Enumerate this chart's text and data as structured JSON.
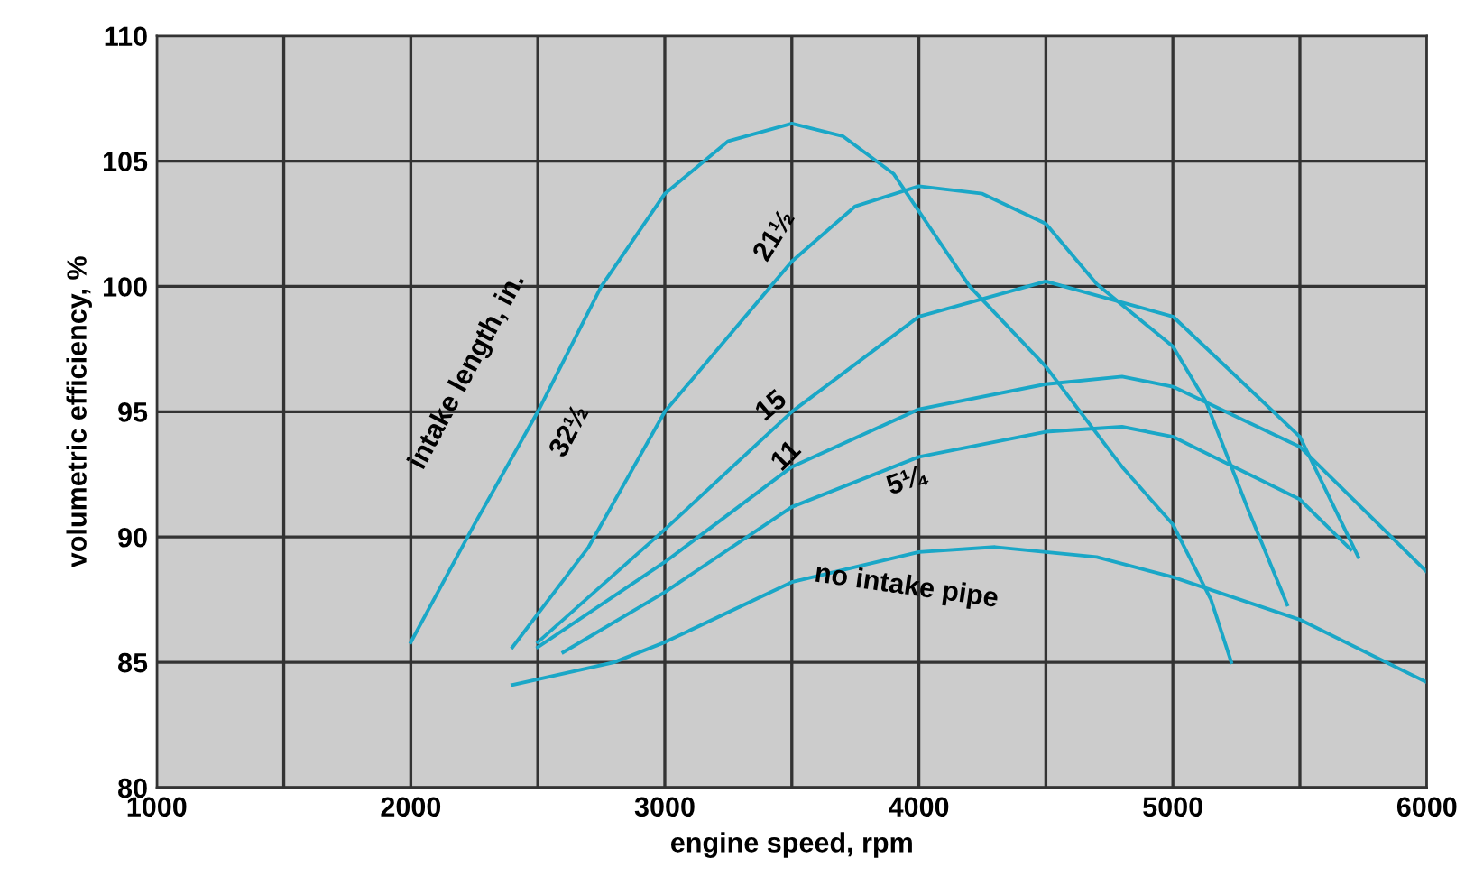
{
  "chart_data": {
    "type": "line",
    "xlabel": "engine speed, rpm",
    "ylabel": "volumetric efficiency, %",
    "legend_title": "intake length, in.",
    "xlim": [
      1000,
      6000
    ],
    "ylim": [
      80,
      110
    ],
    "xticks": [
      1000,
      {
        "value": 1500,
        "label": null
      },
      2000,
      {
        "value": 2500,
        "label": null
      },
      3000,
      {
        "value": 3500,
        "label": null
      },
      4000,
      {
        "value": 4500,
        "label": null
      },
      5000,
      {
        "value": 5500,
        "label": null
      },
      6000
    ],
    "yticks": [
      80,
      85,
      90,
      95,
      100,
      105,
      110
    ],
    "grid": true,
    "legend": false,
    "marker": "none",
    "line_style": "solid",
    "series": [
      {
        "name": "32½",
        "color": "#1aa7c7",
        "x": [
          2000,
          2250,
          2500,
          2750,
          3000,
          3250,
          3500,
          3700,
          3900,
          4200,
          4500,
          4800,
          5000,
          5150,
          5230
        ],
        "values": [
          85.8,
          90.5,
          95,
          100,
          103.7,
          105.8,
          106.5,
          106,
          104.5,
          100,
          96.8,
          92.8,
          90.5,
          87.5,
          85
        ]
      },
      {
        "name": "21½",
        "color": "#1aa7c7",
        "x": [
          2400,
          2700,
          3000,
          3250,
          3500,
          3750,
          4000,
          4250,
          4500,
          4700,
          5000,
          5130,
          5300,
          5450
        ],
        "values": [
          85.6,
          89.6,
          95,
          98,
          101,
          103.2,
          104,
          103.7,
          102.5,
          100.1,
          97.6,
          95.4,
          91,
          87.3
        ]
      },
      {
        "name": "15",
        "color": "#1aa7c7",
        "x": [
          2500,
          3000,
          3500,
          4000,
          4500,
          5000,
          5500,
          5730
        ],
        "values": [
          85.8,
          90.3,
          95,
          98.8,
          100.2,
          98.8,
          94,
          89.2
        ]
      },
      {
        "name": "11",
        "color": "#1aa7c7",
        "x": [
          2500,
          3000,
          3500,
          4000,
          4500,
          4800,
          5000,
          5500,
          6000
        ],
        "values": [
          85.6,
          89,
          92.8,
          95.1,
          96.1,
          96.4,
          96,
          93.6,
          88.6
        ]
      },
      {
        "name": "5¼",
        "color": "#1aa7c7",
        "x": [
          2600,
          3000,
          3500,
          4000,
          4500,
          4800,
          5000,
          5500,
          5700
        ],
        "values": [
          85.4,
          87.8,
          91.2,
          93.2,
          94.2,
          94.4,
          94,
          91.5,
          89.5
        ]
      },
      {
        "name": "no intake pipe",
        "color": "#1aa7c7",
        "x": [
          2400,
          2800,
          3000,
          3500,
          4000,
          4300,
          4700,
          5000,
          5500,
          6000
        ],
        "values": [
          84.1,
          85,
          85.8,
          88.2,
          89.4,
          89.6,
          89.2,
          88.4,
          86.7,
          84.2
        ]
      }
    ]
  }
}
